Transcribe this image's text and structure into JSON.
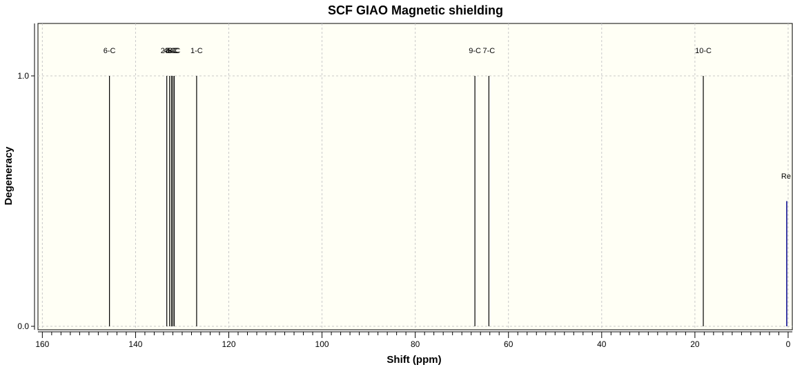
{
  "chart_data": {
    "type": "bar",
    "title": "SCF GIAO Magnetic shielding",
    "xlabel": "Shift (ppm)",
    "ylabel": "Degeneracy",
    "xlim": [
      160.2,
      -0.6
    ],
    "ylim": [
      -0.005,
      1.2
    ],
    "x_ticks": [
      {
        "value": 160,
        "label": "160"
      },
      {
        "value": 140,
        "label": "140"
      },
      {
        "value": 120,
        "label": "120"
      },
      {
        "value": 100,
        "label": "100"
      },
      {
        "value": 80,
        "label": "80"
      },
      {
        "value": 60,
        "label": "60"
      },
      {
        "value": 40,
        "label": "40"
      },
      {
        "value": 20,
        "label": "20"
      },
      {
        "value": 0,
        "label": "0"
      }
    ],
    "y_ticks": [
      {
        "value": 0.0,
        "label": "0.0"
      },
      {
        "value": 1.0,
        "label": "1.0"
      }
    ],
    "grid": true,
    "peaks": [
      {
        "label": "6-C",
        "x": 145.6,
        "y": 1.0
      },
      {
        "label": "2-C",
        "x": 133.3,
        "y": 1.0
      },
      {
        "label": "4-C",
        "x": 132.7,
        "y": 1.0
      },
      {
        "label": "3-C",
        "x": 132.3,
        "y": 1.0
      },
      {
        "label": "5-C",
        "x": 132.0,
        "y": 1.0
      },
      {
        "label": "8-C",
        "x": 131.7,
        "y": 1.0
      },
      {
        "label": "1-C",
        "x": 126.9,
        "y": 1.0
      },
      {
        "label": "9-C",
        "x": 67.2,
        "y": 1.0
      },
      {
        "label": "7-C",
        "x": 64.2,
        "y": 1.0
      },
      {
        "label": "10-C",
        "x": 18.2,
        "y": 1.0
      }
    ],
    "reference": {
      "label": "Re",
      "x": 0.0,
      "y": 0.5
    },
    "colors": {
      "plot_background": "#fffff5",
      "grid": "#c8c8c8",
      "peak": "#000000",
      "reference": "#00008b"
    }
  }
}
